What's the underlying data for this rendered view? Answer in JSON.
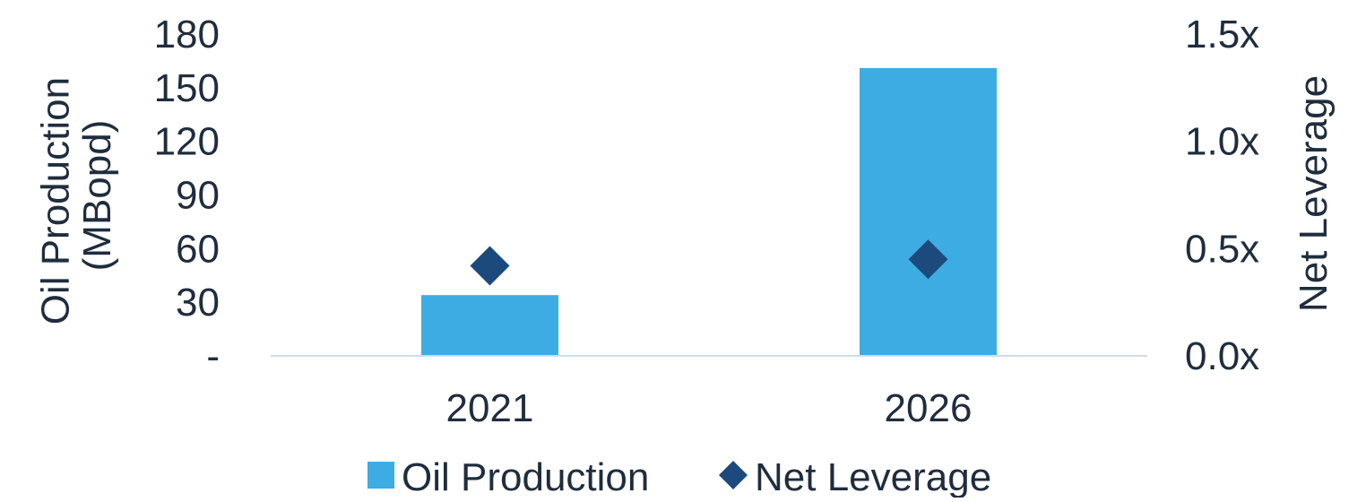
{
  "chart_data": {
    "type": "bar",
    "categories": [
      "2021",
      "2026"
    ],
    "series": [
      {
        "name": "Oil Production",
        "type": "bar",
        "axis": "left",
        "values": [
          34,
          161
        ],
        "color": "#3dace2"
      },
      {
        "name": "Net Leverage",
        "type": "scatter",
        "marker": "diamond",
        "axis": "right",
        "values": [
          0.42,
          0.45
        ],
        "color": "#1c4a7c"
      }
    ],
    "y_left": {
      "label_line1": "Oil Production",
      "label_line2": "(MBopd)",
      "ylim": [
        0,
        180
      ],
      "ticks": [
        0,
        30,
        60,
        90,
        120,
        150,
        180
      ],
      "tick_labels": [
        "-",
        "30",
        "60",
        "90",
        "120",
        "150",
        "180"
      ]
    },
    "y_right": {
      "label": "Net Leverage",
      "ylim": [
        0,
        1.5
      ],
      "ticks": [
        0,
        0.5,
        1.0,
        1.5
      ],
      "tick_labels": [
        "0.0x",
        "0.5x",
        "1.0x",
        "1.5x"
      ]
    },
    "legend": {
      "position": "bottom",
      "items": [
        "Oil Production",
        "Net Leverage"
      ]
    },
    "grid": false,
    "axis_line_color": "#d0dce8",
    "text_color": "#1f2d3d"
  }
}
